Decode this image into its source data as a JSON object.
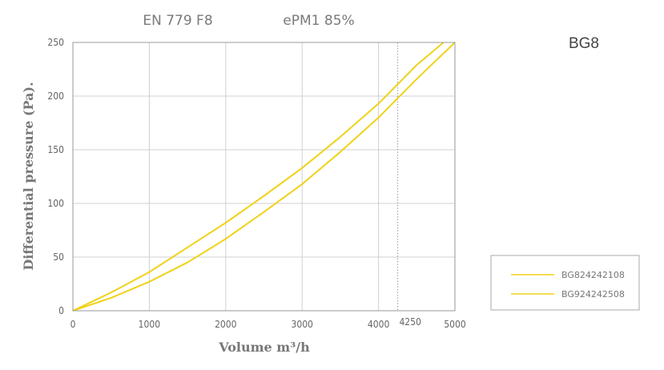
{
  "header": {
    "standard": "EN 779 F8",
    "class": "ePM1 85%",
    "model": "BG8"
  },
  "chart_data": {
    "type": "line",
    "xlabel": "Volume m³/h",
    "ylabel": "Differential pressure (Pa).",
    "xlim": [
      0,
      5000
    ],
    "ylim": [
      0,
      250
    ],
    "x_ticks": [
      0,
      1000,
      2000,
      3000,
      4000,
      5000
    ],
    "y_ticks": [
      0,
      50,
      100,
      150,
      200,
      250
    ],
    "x_tick_labels": [
      "0",
      "1000",
      "2000",
      "3000",
      "4000",
      "5000"
    ],
    "y_tick_labels": [
      "0",
      "50",
      "100",
      "150",
      "200",
      "250"
    ],
    "grid": true,
    "reference_line": {
      "x": 4250,
      "label": "4250"
    },
    "legend_position": "right",
    "series": [
      {
        "name": "BG824242108",
        "color": "#f0d21a",
        "x": [
          0,
          500,
          1000,
          1500,
          2000,
          2500,
          3000,
          3500,
          4000,
          4500,
          4850
        ],
        "y": [
          0,
          17,
          36,
          59,
          82,
          107,
          133,
          162,
          193,
          229,
          250
        ]
      },
      {
        "name": "BG924242508",
        "color": "#f0d21a",
        "x": [
          0,
          500,
          1000,
          1500,
          2000,
          2500,
          3000,
          3500,
          4000,
          4500,
          5000
        ],
        "y": [
          0,
          12,
          27,
          45,
          67,
          92,
          118,
          148,
          180,
          216,
          250
        ]
      }
    ]
  }
}
